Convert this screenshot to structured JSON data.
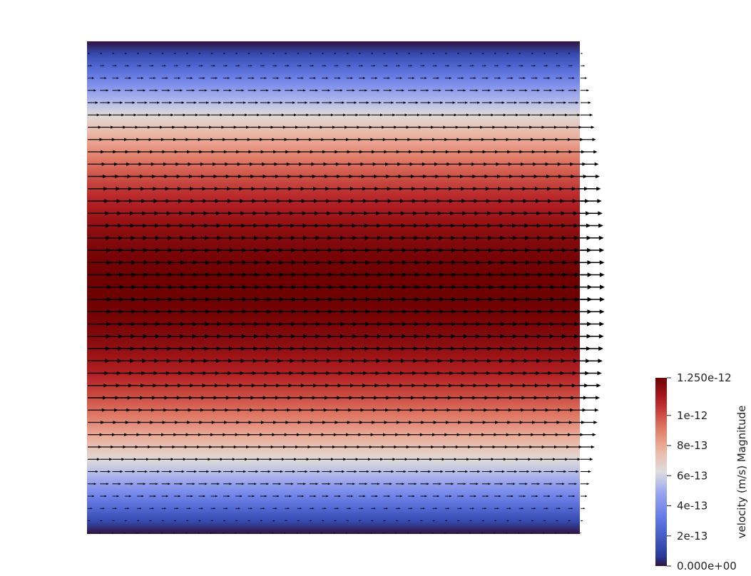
{
  "render": {
    "background": "#ffffff",
    "domain_field": "velocity magnitude",
    "colormap": [
      "#3b4cc0",
      "#dddddd",
      "#b40426"
    ],
    "colormap_name": "Cool to Warm",
    "flow_direction": "left-to-right",
    "profile": "parabolic"
  },
  "legend": {
    "title": "velocity (m/s) Magnitude",
    "range": [
      0,
      1.25e-12
    ],
    "ticks": [
      {
        "value": 1.25e-12,
        "label": "1.250e-12"
      },
      {
        "value": 1e-12,
        "label": "1e-12"
      },
      {
        "value": 8e-13,
        "label": "8e-13"
      },
      {
        "value": 6e-13,
        "label": "6e-13"
      },
      {
        "value": 4e-13,
        "label": "4e-13"
      },
      {
        "value": 2e-13,
        "label": "2e-13"
      },
      {
        "value": 0,
        "label": "0.000e+00"
      }
    ]
  },
  "glyphs": {
    "rows": 40,
    "columns": 41,
    "color": "#000000"
  }
}
